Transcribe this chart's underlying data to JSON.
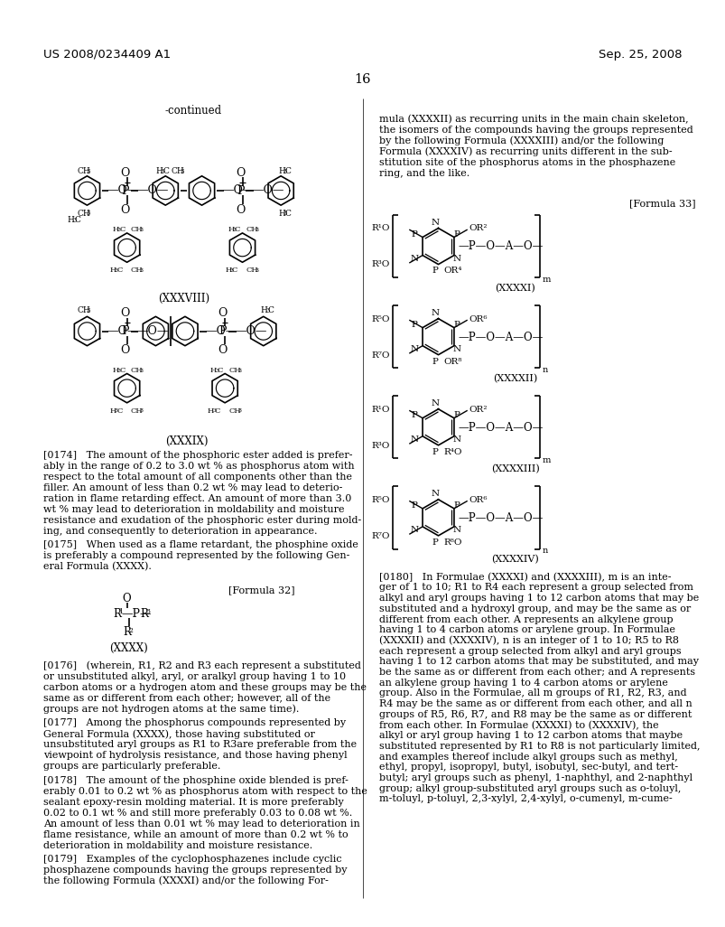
{
  "page_number": "16",
  "patent_left": "US 2008/0234409 A1",
  "patent_right": "Sep. 25, 2008",
  "background_color": "#ffffff",
  "text_color": "#000000",
  "continued_label": "-continued",
  "formula32_label": "[Formula 32]",
  "formula33_label": "[Formula 33]",
  "struct_labels": [
    "(XXXVIII)",
    "(XXXIX)",
    "(XXXX)",
    "(XXXXI)",
    "(XXXXII)",
    "(XXXXIII)",
    "(XXXXIV)"
  ],
  "para174": [
    "[0174]   The amount of the phosphoric ester added is prefer-",
    "ably in the range of 0.2 to 3.0 wt % as phosphorus atom with",
    "respect to the total amount of all components other than the",
    "filler. An amount of less than 0.2 wt % may lead to deterio-",
    "ration in flame retarding effect. An amount of more than 3.0",
    "wt % may lead to deterioration in moldability and moisture",
    "resistance and exudation of the phosphoric ester during mold-",
    "ing, and consequently to deterioration in appearance."
  ],
  "para175": [
    "[0175]   When used as a flame retardant, the phosphine oxide",
    "is preferably a compound represented by the following Gen-",
    "eral Formula (XXXX)."
  ],
  "para176": [
    "[0176]   (wherein, R1, R2 and R3 each represent a substituted",
    "or unsubstituted alkyl, aryl, or aralkyl group having 1 to 10",
    "carbon atoms or a hydrogen atom and these groups may be the",
    "same as or different from each other; however, all of the",
    "groups are not hydrogen atoms at the same time)."
  ],
  "para177": [
    "[0177]   Among the phosphorus compounds represented by",
    "General Formula (XXXX), those having substituted or",
    "unsubstituted aryl groups as R1 to R3are preferable from the",
    "viewpoint of hydrolysis resistance, and those having phenyl",
    "groups are particularly preferable."
  ],
  "para178": [
    "[0178]   The amount of the phosphine oxide blended is pref-",
    "erably 0.01 to 0.2 wt % as phosphorus atom with respect to the",
    "sealant epoxy-resin molding material. It is more preferably",
    "0.02 to 0.1 wt % and still more preferably 0.03 to 0.08 wt %.",
    "An amount of less than 0.01 wt % may lead to deterioration in",
    "flame resistance, while an amount of more than 0.2 wt % to",
    "deterioration in moldability and moisture resistance."
  ],
  "para179": [
    "[0179]   Examples of the cyclophosphazenes include cyclic",
    "phosphazene compounds having the groups represented by",
    "the following Formula (XXXXI) and/or the following For-"
  ],
  "right_intro": [
    "mula (XXXXII) as recurring units in the main chain skeleton,",
    "the isomers of the compounds having the groups represented",
    "by the following Formula (XXXXIII) and/or the following",
    "Formula (XXXXIV) as recurring units different in the sub-",
    "stitution site of the phosphorus atoms in the phosphazene",
    "ring, and the like."
  ],
  "para180": [
    "[0180]   In Formulae (XXXXI) and (XXXXIII), m is an inte-",
    "ger of 1 to 10; R1 to R4 each represent a group selected from",
    "alkyl and aryl groups having 1 to 12 carbon atoms that may be",
    "substituted and a hydroxyl group, and may be the same as or",
    "different from each other. A represents an alkylene group",
    "having 1 to 4 carbon atoms or arylene group. In Formulae",
    "(XXXXII) and (XXXXIV), n is an integer of 1 to 10; R5 to R8",
    "each represent a group selected from alkyl and aryl groups",
    "having 1 to 12 carbon atoms that may be substituted, and may",
    "be the same as or different from each other; and A represents",
    "an alkylene group having 1 to 4 carbon atoms or arylene",
    "group. Also in the Formulae, all m groups of R1, R2, R3, and",
    "R4 may be the same as or different from each other, and all n",
    "groups of R5, R6, R7, and R8 may be the same as or different",
    "from each other. In Formulae (XXXXI) to (XXXXIV), the",
    "alkyl or aryl group having 1 to 12 carbon atoms that maybe",
    "substituted represented by R1 to R8 is not particularly limited,",
    "and examples thereof include alkyl groups such as methyl,",
    "ethyl, propyl, isopropyl, butyl, isobutyl, sec-butyl, and tert-",
    "butyl; aryl groups such as phenyl, 1-naphthyl, and 2-naphthyl",
    "group; alkyl group-substituted aryl groups such as o-toluyl,",
    "m-toluyl, p-toluyl, 2,3-xylyl, 2,4-xylyl, o-cumenyl, m-cume-"
  ]
}
